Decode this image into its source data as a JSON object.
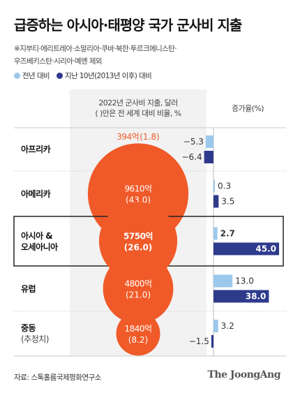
{
  "title": "급증하는 아시아·태평양 국가 군사비 지출",
  "notes": [
    "※지부티·에리트레아·소말리아·쿠바·북한·투르크메니스탄·",
    "우즈베키스탄·시리아·예멘 제외"
  ],
  "legend": [
    {
      "label": "전년 대비",
      "color": "#9cc8ec"
    },
    {
      "label": "지난 10년(2013년 이후) 대비",
      "color": "#2e3a8c"
    }
  ],
  "column_headers": {
    "spending": [
      "2022년 군사비 지출, 달러",
      "( )안은 전 세계 대비 비율, %"
    ],
    "growth": "증가율(%)"
  },
  "colors": {
    "bubble": "#f05a28",
    "highlight_border": "#222222",
    "shade": "#f2f2f2"
  },
  "chart_data": {
    "type": "bar",
    "title": "급증하는 아시아·태평양 국가 군사비 지출",
    "xlabel": "증가율(%)",
    "categories": [
      "아프리카",
      "아메리카",
      "아시아&오세아니아",
      "유럽",
      "중동(추정치)"
    ],
    "rows": [
      {
        "name": [
          "아프리카"
        ],
        "sub": "",
        "spending": "394억",
        "share_label": "(1.8)",
        "share": 1.8,
        "yoy": -5.3,
        "decade": -6.4,
        "yoy_label": "−5.3",
        "decade_label": "−6.4",
        "highlight": false
      },
      {
        "name": [
          "아메리카"
        ],
        "sub": "",
        "spending": "9610억",
        "share_label": "(43.0)",
        "share": 43.0,
        "yoy": 0.3,
        "decade": 3.5,
        "yoy_label": "0.3",
        "decade_label": "3.5",
        "highlight": false
      },
      {
        "name": [
          "아시아 &",
          "오세아니아"
        ],
        "sub": "",
        "spending": "5750억",
        "share_label": "(26.0)",
        "share": 26.0,
        "yoy": 2.7,
        "decade": 45.0,
        "yoy_label": "2.7",
        "decade_label": "45.0",
        "highlight": true
      },
      {
        "name": [
          "유럽"
        ],
        "sub": "",
        "spending": "4800억",
        "share_label": "(21.0)",
        "share": 21.0,
        "yoy": 13.0,
        "decade": 38.0,
        "yoy_label": "13.0",
        "decade_label": "38.0",
        "highlight": false
      },
      {
        "name": [
          "중동"
        ],
        "sub": "(추정치)",
        "spending": "1840억",
        "share_label": "(8.2)",
        "share": 8.2,
        "yoy": 3.2,
        "decade": -1.5,
        "yoy_label": "3.2",
        "decade_label": "−1.5",
        "highlight": false
      }
    ],
    "series": [
      {
        "name": "전년 대비",
        "values": [
          -5.3,
          0.3,
          2.7,
          13.0,
          3.2
        ]
      },
      {
        "name": "지난 10년(2013년 이후) 대비",
        "values": [
          -6.4,
          3.5,
          45.0,
          38.0,
          -1.5
        ]
      }
    ]
  },
  "source": "자료: 스톡홀름국제평화연구소",
  "brand": "The JoongAng"
}
